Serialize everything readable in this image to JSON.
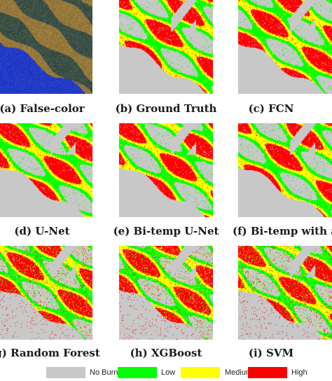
{
  "panels": [
    {
      "caption": "(a) False-color",
      "kind": "false-color",
      "seed": 11
    },
    {
      "caption": "(b) Ground Truth",
      "kind": "map",
      "seed": 23
    },
    {
      "caption": "(c) FCN",
      "kind": "map",
      "seed": 37
    },
    {
      "caption": "(d) U-Net",
      "kind": "map",
      "seed": 41
    },
    {
      "caption": "(e) Bi-temp U-Net",
      "kind": "map",
      "seed": 53
    },
    {
      "caption": "(f) Bi-temp with att",
      "kind": "map",
      "seed": 67
    },
    {
      "caption": "(g) Random Forest",
      "kind": "map-noisy",
      "seed": 71
    },
    {
      "caption": "(h) XGBoost",
      "kind": "map-noisy",
      "seed": 83
    },
    {
      "caption": "(i) SVM",
      "kind": "map-noisy",
      "seed": 97
    }
  ],
  "legend": [
    {
      "label": "No Burnt",
      "color": "#c8c8c8"
    },
    {
      "label": "Low",
      "color": "#00ff00"
    },
    {
      "label": "Medium",
      "color": "#ffff00"
    },
    {
      "label": "High",
      "color": "#ff0000"
    }
  ]
}
